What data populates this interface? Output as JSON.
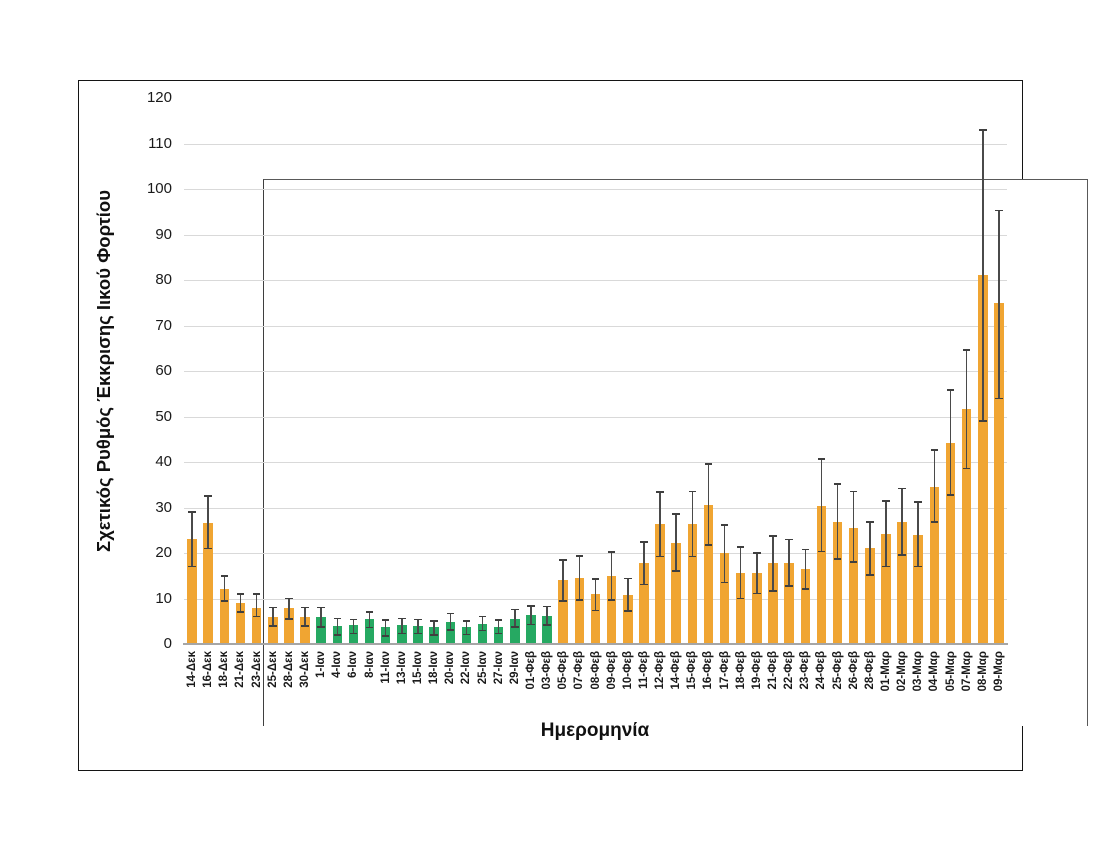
{
  "figure": {
    "y_axis_title": "Σχετικός Ρυθμός Έκκρισης Ιικού Φορτίου",
    "x_axis_title": "Ημερομηνία"
  },
  "chart_data": {
    "type": "bar",
    "title": "",
    "xlabel": "Ημερομηνία",
    "ylabel": "Σχετικός Ρυθμός Έκκρισης Ιικού Φορτίου",
    "ylim": [
      0,
      120
    ],
    "y_ticks": [
      0,
      10,
      20,
      30,
      40,
      50,
      60,
      70,
      80,
      90,
      100,
      110,
      120
    ],
    "grid": true,
    "legend": false,
    "error_bars": true,
    "colors": {
      "orange": "#F0A532",
      "green": "#26A962",
      "error": "#4a4a4a",
      "gridline": "#d9d9d9"
    },
    "bars": [
      {
        "label": "14-Δεκ",
        "value": 23.0,
        "err_low": 17.0,
        "err_high": 29.0,
        "color": "orange"
      },
      {
        "label": "16-Δεκ",
        "value": 26.5,
        "err_low": 21.0,
        "err_high": 32.5,
        "color": "orange"
      },
      {
        "label": "18-Δεκ",
        "value": 12.0,
        "err_low": 9.5,
        "err_high": 15.0,
        "color": "orange"
      },
      {
        "label": "21-Δεκ",
        "value": 9.0,
        "err_low": 7.0,
        "err_high": 11.0,
        "color": "orange"
      },
      {
        "label": "23-Δεκ",
        "value": 8.0,
        "err_low": 6.0,
        "err_high": 11.0,
        "color": "orange"
      },
      {
        "label": "25-Δεκ",
        "value": 6.0,
        "err_low": 4.0,
        "err_high": 8.0,
        "color": "orange"
      },
      {
        "label": "28-Δεκ",
        "value": 8.0,
        "err_low": 5.5,
        "err_high": 10.0,
        "color": "orange"
      },
      {
        "label": "30-Δεκ",
        "value": 6.0,
        "err_low": 4.0,
        "err_high": 8.0,
        "color": "orange"
      },
      {
        "label": "1-Ιαν",
        "value": 6.0,
        "err_low": 3.7,
        "err_high": 8.0,
        "color": "green"
      },
      {
        "label": "4-Ιαν",
        "value": 4.0,
        "err_low": 2.0,
        "err_high": 5.6,
        "color": "green"
      },
      {
        "label": "6-Ιαν",
        "value": 4.2,
        "err_low": 2.3,
        "err_high": 5.4,
        "color": "green"
      },
      {
        "label": "8-Ιαν",
        "value": 5.4,
        "err_low": 3.6,
        "err_high": 7.0,
        "color": "green"
      },
      {
        "label": "11-Ιαν",
        "value": 3.7,
        "err_low": 1.8,
        "err_high": 5.3,
        "color": "green"
      },
      {
        "label": "13-Ιαν",
        "value": 4.2,
        "err_low": 2.3,
        "err_high": 5.6,
        "color": "green"
      },
      {
        "label": "15-Ιαν",
        "value": 4.0,
        "err_low": 2.3,
        "err_high": 5.4,
        "color": "green"
      },
      {
        "label": "18-Ιαν",
        "value": 3.7,
        "err_low": 2.0,
        "err_high": 5.1,
        "color": "green"
      },
      {
        "label": "20-Ιαν",
        "value": 4.9,
        "err_low": 3.1,
        "err_high": 6.7,
        "color": "green"
      },
      {
        "label": "22-Ιαν",
        "value": 3.7,
        "err_low": 2.1,
        "err_high": 5.1,
        "color": "green"
      },
      {
        "label": "25-Ιαν",
        "value": 4.5,
        "err_low": 3.0,
        "err_high": 6.0,
        "color": "green"
      },
      {
        "label": "27-Ιαν",
        "value": 3.8,
        "err_low": 2.3,
        "err_high": 5.3,
        "color": "green"
      },
      {
        "label": "29-Ιαν",
        "value": 5.6,
        "err_low": 3.7,
        "err_high": 7.6,
        "color": "green"
      },
      {
        "label": "01-Φεβ",
        "value": 6.4,
        "err_low": 4.3,
        "err_high": 8.4,
        "color": "green"
      },
      {
        "label": "03-Φεβ",
        "value": 6.2,
        "err_low": 4.2,
        "err_high": 8.2,
        "color": "green"
      },
      {
        "label": "05-Φεβ",
        "value": 14.0,
        "err_low": 9.4,
        "err_high": 18.4,
        "color": "orange"
      },
      {
        "label": "07-Φεβ",
        "value": 14.4,
        "err_low": 9.7,
        "err_high": 19.3,
        "color": "orange"
      },
      {
        "label": "08-Φεβ",
        "value": 11.0,
        "err_low": 7.4,
        "err_high": 14.3,
        "color": "orange"
      },
      {
        "label": "09-Φεβ",
        "value": 15.0,
        "err_low": 9.7,
        "err_high": 20.2,
        "color": "orange"
      },
      {
        "label": "10-Φεβ",
        "value": 10.8,
        "err_low": 7.3,
        "err_high": 14.4,
        "color": "orange"
      },
      {
        "label": "11-Φεβ",
        "value": 17.7,
        "err_low": 13.1,
        "err_high": 22.4,
        "color": "orange"
      },
      {
        "label": "12-Φεβ",
        "value": 26.3,
        "err_low": 19.2,
        "err_high": 33.4,
        "color": "orange"
      },
      {
        "label": "14-Φεβ",
        "value": 22.2,
        "err_low": 16.0,
        "err_high": 28.6,
        "color": "orange"
      },
      {
        "label": "15-Φεβ",
        "value": 26.4,
        "err_low": 19.2,
        "err_high": 33.5,
        "color": "orange"
      },
      {
        "label": "16-Φεβ",
        "value": 30.5,
        "err_low": 21.8,
        "err_high": 39.5,
        "color": "orange"
      },
      {
        "label": "17-Φεβ",
        "value": 19.9,
        "err_low": 13.5,
        "err_high": 26.2,
        "color": "orange"
      },
      {
        "label": "18-Φεβ",
        "value": 15.7,
        "err_low": 10.0,
        "err_high": 21.3,
        "color": "orange"
      },
      {
        "label": "19-Φεβ",
        "value": 15.5,
        "err_low": 11.1,
        "err_high": 20.0,
        "color": "orange"
      },
      {
        "label": "21-Φεβ",
        "value": 17.7,
        "err_low": 11.6,
        "err_high": 23.8,
        "color": "orange"
      },
      {
        "label": "22-Φεβ",
        "value": 17.9,
        "err_low": 12.8,
        "err_high": 23.0,
        "color": "orange"
      },
      {
        "label": "23-Φεβ",
        "value": 16.4,
        "err_low": 12.1,
        "err_high": 20.8,
        "color": "orange"
      },
      {
        "label": "24-Φεβ",
        "value": 30.4,
        "err_low": 20.3,
        "err_high": 40.7,
        "color": "orange"
      },
      {
        "label": "25-Φεβ",
        "value": 26.9,
        "err_low": 18.7,
        "err_high": 35.1,
        "color": "orange"
      },
      {
        "label": "26-Φεβ",
        "value": 25.6,
        "err_low": 18.0,
        "err_high": 33.5,
        "color": "orange"
      },
      {
        "label": "28-Φεβ",
        "value": 21.0,
        "err_low": 15.2,
        "err_high": 26.8,
        "color": "orange"
      },
      {
        "label": "01-Μαρ",
        "value": 24.2,
        "err_low": 17.0,
        "err_high": 31.4,
        "color": "orange"
      },
      {
        "label": "02-Μαρ",
        "value": 26.8,
        "err_low": 19.5,
        "err_high": 34.2,
        "color": "orange"
      },
      {
        "label": "03-Μαρ",
        "value": 24.0,
        "err_low": 17.0,
        "err_high": 31.2,
        "color": "orange"
      },
      {
        "label": "04-Μαρ",
        "value": 34.6,
        "err_low": 26.8,
        "err_high": 42.6,
        "color": "orange"
      },
      {
        "label": "05-Μαρ",
        "value": 44.2,
        "err_low": 32.7,
        "err_high": 55.8,
        "color": "orange"
      },
      {
        "label": "07-Μαρ",
        "value": 51.6,
        "err_low": 38.6,
        "err_high": 64.6,
        "color": "orange"
      },
      {
        "label": "08-Μαρ",
        "value": 81.0,
        "err_low": 49.0,
        "err_high": 113.0,
        "color": "orange"
      },
      {
        "label": "09-Μαρ",
        "value": 75.0,
        "err_low": 54.0,
        "err_high": 95.3,
        "color": "orange"
      }
    ]
  }
}
